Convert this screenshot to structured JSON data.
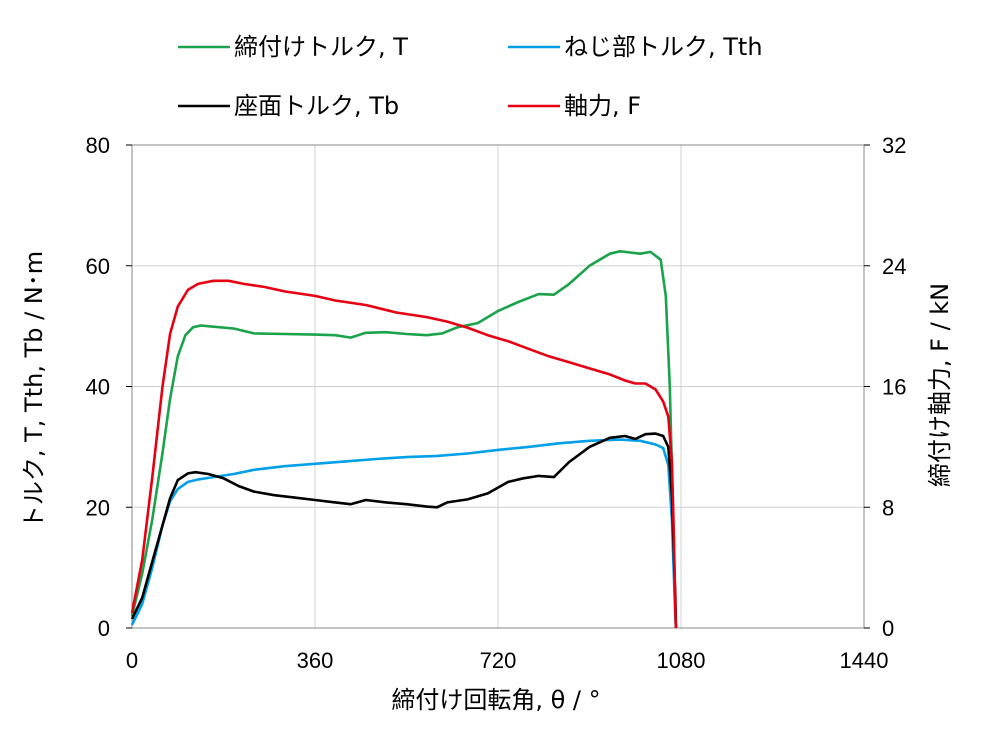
{
  "chart_data": {
    "type": "line",
    "legend_placement": "top",
    "grid": true,
    "xlabel": "締付け回転角, θ / °",
    "ylabel_left": "トルク, T, Tth, Tb / N･m",
    "ylabel_right": "締付け軸力, F / kN",
    "xlim": [
      0,
      1440
    ],
    "ylim_left": [
      0,
      80
    ],
    "ylim_right": [
      0,
      32
    ],
    "x_ticks": [
      "0",
      "360",
      "720",
      "1080",
      "1440"
    ],
    "y_left_ticks": [
      "0",
      "20",
      "40",
      "60",
      "80"
    ],
    "y_right_ticks": [
      "0",
      "8",
      "16",
      "24",
      "32"
    ],
    "series": [
      {
        "name": "締付けトルク, T",
        "color": "#1aa34a",
        "axis": "left",
        "points": [
          [
            0,
            2
          ],
          [
            20,
            9
          ],
          [
            40,
            18
          ],
          [
            60,
            29
          ],
          [
            75,
            38
          ],
          [
            90,
            45
          ],
          [
            105,
            48.5
          ],
          [
            120,
            49.8
          ],
          [
            135,
            50.1
          ],
          [
            160,
            49.9
          ],
          [
            200,
            49.6
          ],
          [
            240,
            48.8
          ],
          [
            300,
            48.7
          ],
          [
            360,
            48.6
          ],
          [
            400,
            48.5
          ],
          [
            430,
            48.1
          ],
          [
            460,
            48.9
          ],
          [
            500,
            49
          ],
          [
            540,
            48.7
          ],
          [
            580,
            48.5
          ],
          [
            610,
            48.8
          ],
          [
            640,
            49.8
          ],
          [
            680,
            50.5
          ],
          [
            720,
            52.5
          ],
          [
            760,
            54
          ],
          [
            800,
            55.3
          ],
          [
            830,
            55.2
          ],
          [
            860,
            57
          ],
          [
            900,
            60
          ],
          [
            940,
            62
          ],
          [
            960,
            62.4
          ],
          [
            980,
            62.2
          ],
          [
            1000,
            62
          ],
          [
            1020,
            62.3
          ],
          [
            1040,
            61
          ],
          [
            1050,
            55
          ],
          [
            1058,
            40
          ],
          [
            1064,
            20
          ],
          [
            1068,
            5
          ],
          [
            1070,
            0
          ]
        ]
      },
      {
        "name": "ねじ部トルク, Tth",
        "color": "#00a0e9",
        "axis": "left",
        "points": [
          [
            0,
            0.5
          ],
          [
            20,
            4
          ],
          [
            40,
            10
          ],
          [
            60,
            17
          ],
          [
            75,
            21
          ],
          [
            90,
            23
          ],
          [
            110,
            24.2
          ],
          [
            130,
            24.6
          ],
          [
            160,
            25
          ],
          [
            200,
            25.5
          ],
          [
            240,
            26.2
          ],
          [
            300,
            26.8
          ],
          [
            360,
            27.2
          ],
          [
            420,
            27.6
          ],
          [
            480,
            28
          ],
          [
            540,
            28.3
          ],
          [
            600,
            28.5
          ],
          [
            660,
            28.9
          ],
          [
            720,
            29.5
          ],
          [
            780,
            30
          ],
          [
            840,
            30.6
          ],
          [
            900,
            31
          ],
          [
            960,
            31.2
          ],
          [
            1000,
            31
          ],
          [
            1030,
            30.4
          ],
          [
            1045,
            29.8
          ],
          [
            1055,
            27
          ],
          [
            1062,
            18
          ],
          [
            1067,
            6
          ],
          [
            1070,
            0
          ]
        ]
      },
      {
        "name": "座面トルク, Tb",
        "color": "#000000",
        "axis": "left",
        "points": [
          [
            0,
            1.5
          ],
          [
            20,
            5
          ],
          [
            40,
            11
          ],
          [
            60,
            17
          ],
          [
            75,
            21.5
          ],
          [
            90,
            24.5
          ],
          [
            110,
            25.6
          ],
          [
            125,
            25.8
          ],
          [
            150,
            25.5
          ],
          [
            180,
            24.8
          ],
          [
            210,
            23.5
          ],
          [
            240,
            22.6
          ],
          [
            280,
            22
          ],
          [
            320,
            21.6
          ],
          [
            360,
            21.2
          ],
          [
            400,
            20.8
          ],
          [
            430,
            20.5
          ],
          [
            460,
            21.2
          ],
          [
            500,
            20.8
          ],
          [
            540,
            20.5
          ],
          [
            580,
            20.1
          ],
          [
            600,
            20
          ],
          [
            620,
            20.8
          ],
          [
            660,
            21.3
          ],
          [
            700,
            22.3
          ],
          [
            740,
            24.2
          ],
          [
            770,
            24.8
          ],
          [
            800,
            25.2
          ],
          [
            830,
            25
          ],
          [
            860,
            27.5
          ],
          [
            900,
            30
          ],
          [
            940,
            31.5
          ],
          [
            970,
            31.8
          ],
          [
            990,
            31.3
          ],
          [
            1010,
            32.1
          ],
          [
            1030,
            32.2
          ],
          [
            1045,
            31.8
          ],
          [
            1055,
            30
          ],
          [
            1062,
            22
          ],
          [
            1066,
            12
          ],
          [
            1069,
            5
          ],
          [
            1070,
            0
          ]
        ]
      },
      {
        "name": "軸力, F",
        "color": "#e60012",
        "axis": "right",
        "points": [
          [
            0,
            1
          ],
          [
            20,
            4.5
          ],
          [
            40,
            10
          ],
          [
            60,
            16
          ],
          [
            75,
            19.5
          ],
          [
            90,
            21.3
          ],
          [
            110,
            22.4
          ],
          [
            130,
            22.8
          ],
          [
            160,
            23
          ],
          [
            190,
            23
          ],
          [
            220,
            22.8
          ],
          [
            260,
            22.6
          ],
          [
            300,
            22.3
          ],
          [
            360,
            22
          ],
          [
            400,
            21.7
          ],
          [
            460,
            21.4
          ],
          [
            520,
            20.9
          ],
          [
            580,
            20.6
          ],
          [
            620,
            20.3
          ],
          [
            660,
            19.9
          ],
          [
            700,
            19.4
          ],
          [
            740,
            19
          ],
          [
            780,
            18.5
          ],
          [
            820,
            18
          ],
          [
            860,
            17.6
          ],
          [
            900,
            17.2
          ],
          [
            940,
            16.8
          ],
          [
            970,
            16.4
          ],
          [
            990,
            16.2
          ],
          [
            1010,
            16.2
          ],
          [
            1030,
            15.8
          ],
          [
            1045,
            15
          ],
          [
            1055,
            14
          ],
          [
            1062,
            11
          ],
          [
            1066,
            6
          ],
          [
            1069,
            1
          ],
          [
            1070,
            0
          ]
        ]
      }
    ]
  }
}
